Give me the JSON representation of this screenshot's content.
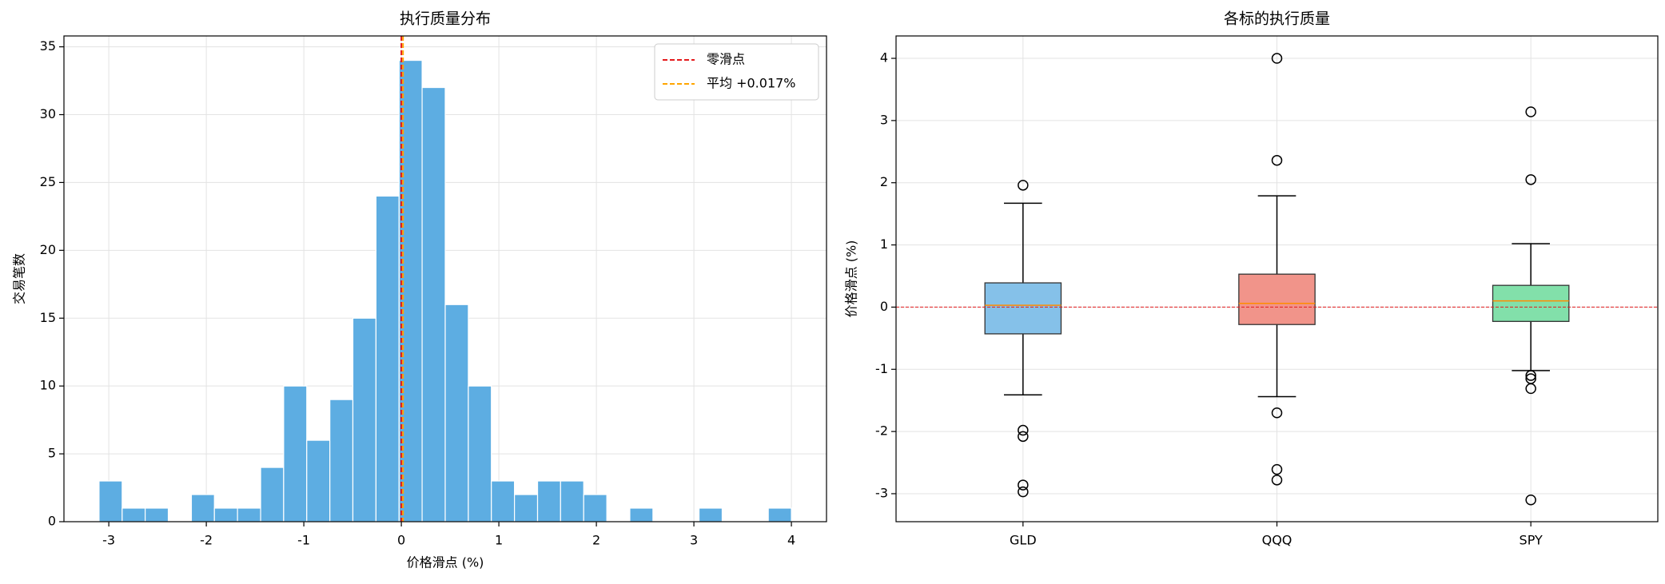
{
  "chart_data": [
    {
      "type": "histogram",
      "title": "执行质量分布",
      "x_label": "价格滑点 (%)",
      "y_label": "交易笔数",
      "bins": [
        -3.1,
        -2.863,
        -2.627,
        -2.39,
        -2.153,
        -1.917,
        -1.68,
        -1.443,
        -1.207,
        -0.97,
        -0.733,
        -0.497,
        -0.26,
        -0.023,
        0.213,
        0.45,
        0.687,
        0.923,
        1.16,
        1.397,
        1.633,
        1.87,
        2.107,
        2.343,
        2.58,
        2.817,
        3.053,
        3.29,
        3.527,
        3.763,
        4.0
      ],
      "values": [
        3,
        1,
        1,
        0,
        2,
        1,
        1,
        4,
        10,
        6,
        9,
        15,
        24,
        34,
        32,
        16,
        10,
        3,
        2,
        3,
        3,
        2,
        0,
        1,
        0,
        0,
        1,
        0,
        0,
        1
      ],
      "color": "#5dade2",
      "xlim": [
        -3.46,
        4.36
      ],
      "xticks": [
        -3,
        -2,
        -1,
        0,
        1,
        2,
        3,
        4
      ],
      "ylim": [
        0,
        35.8
      ],
      "yticks": [
        0,
        5,
        10,
        15,
        20,
        25,
        30,
        35
      ],
      "grid": true,
      "legend": "upper right",
      "reference_lines": [
        {
          "name": "零滑点",
          "value": 0,
          "color": "#e41a1c"
        },
        {
          "name": "平均 +0.017%",
          "value": 0.017,
          "color": "#ffa500"
        }
      ]
    },
    {
      "type": "box",
      "title": "各标的执行质量",
      "y_label": "价格滑点 (%)",
      "categories": [
        "GLD",
        "QQQ",
        "SPY"
      ],
      "boxes": [
        {
          "whisker_low": -1.41,
          "q1": -0.43,
          "median": 0.03,
          "q3": 0.39,
          "whisker_high": 1.67,
          "outliers": [
            1.96,
            -1.98,
            -2.08,
            -2.86,
            -2.97
          ],
          "color": "#85c1e9"
        },
        {
          "whisker_low": -1.44,
          "q1": -0.28,
          "median": 0.06,
          "q3": 0.53,
          "whisker_high": 1.79,
          "outliers": [
            4.0,
            2.36,
            -1.7,
            -2.61,
            -2.78
          ],
          "color": "#f1948a"
        },
        {
          "whisker_low": -1.02,
          "q1": -0.23,
          "median": 0.1,
          "q3": 0.35,
          "whisker_high": 1.02,
          "outliers": [
            3.14,
            2.05,
            -1.1,
            -1.15,
            -1.31,
            -3.1
          ],
          "color": "#82e0aa"
        }
      ],
      "median_color": "#ff8c00",
      "ylim": [
        -3.45,
        4.36
      ],
      "yticks": [
        -3,
        -2,
        -1,
        0,
        1,
        2,
        3,
        4
      ],
      "grid": true,
      "reference_lines": [
        {
          "value": 0,
          "color": "#e41a1c"
        }
      ]
    }
  ]
}
